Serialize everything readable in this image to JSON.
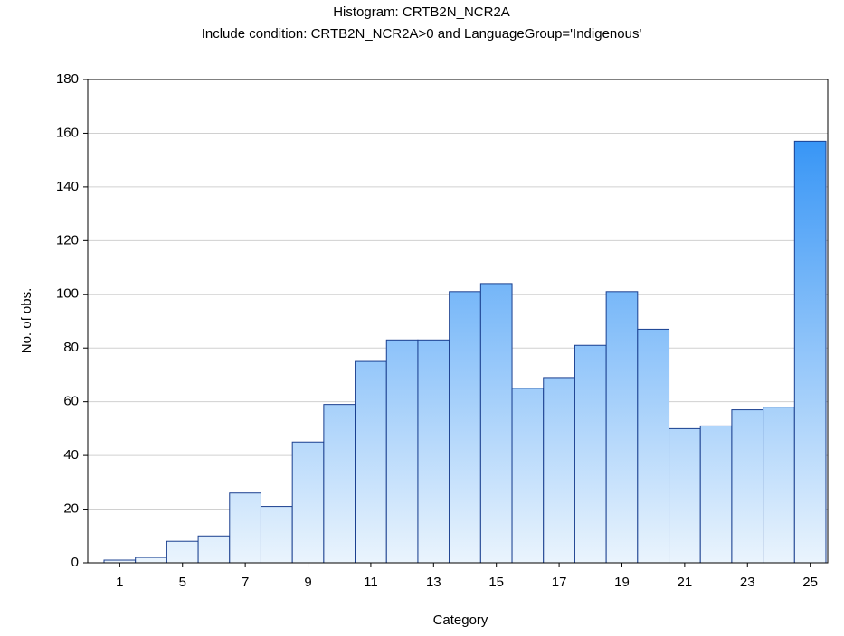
{
  "chart_data": {
    "type": "bar",
    "title": "Histogram: CRTB2N_NCR2A",
    "subtitle": "Include condition: CRTB2N_NCR2A>0 and LanguageGroup='Indigenous'",
    "x_label": "Category",
    "y_label": "No. of obs.",
    "categories": [
      "1",
      null,
      "5",
      null,
      "7",
      null,
      "9",
      null,
      "11",
      null,
      "13",
      null,
      "15",
      null,
      "17",
      null,
      "19",
      null,
      "21",
      null,
      "23",
      null,
      "25"
    ],
    "values": [
      1,
      2,
      8,
      10,
      26,
      21,
      45,
      59,
      75,
      83,
      83,
      101,
      104,
      65,
      69,
      81,
      101,
      87,
      50,
      51,
      57,
      58,
      157
    ],
    "color": "#1e88f5",
    "ylim": [
      0,
      180
    ],
    "yticks": [
      0,
      20,
      40,
      60,
      80,
      100,
      120,
      140,
      160,
      180
    ],
    "grid": true
  }
}
